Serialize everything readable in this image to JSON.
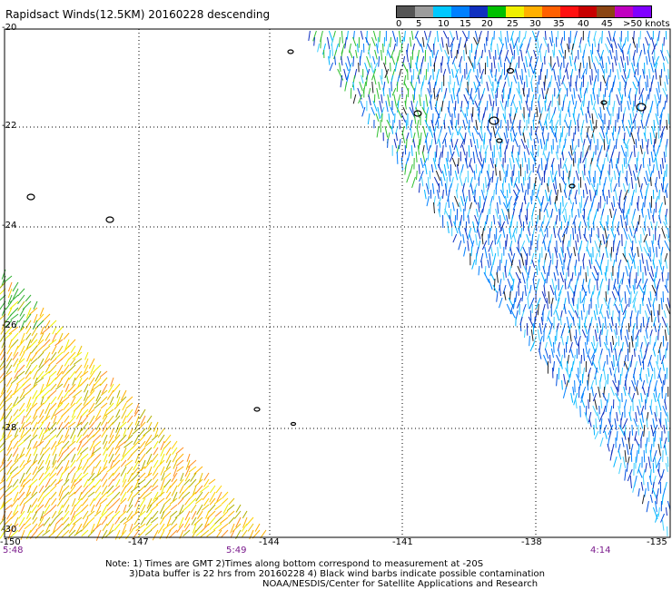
{
  "title": "Rapidsact Winds(12.5KM) 20160228 descending",
  "colorbar": {
    "colors": [
      "#555555",
      "#9c9c9c",
      "#00c8ff",
      "#0080ff",
      "#1030c0",
      "#00c000",
      "#f0f000",
      "#ffb000",
      "#ff6000",
      "#ff1010",
      "#c80000",
      "#8b4513",
      "#c000c0",
      "#8000ff"
    ],
    "labels": [
      "0",
      "5",
      "10",
      "15",
      "20",
      "25",
      "30",
      "35",
      "40",
      "45",
      ">50 knots"
    ]
  },
  "axes": {
    "lat_labels": [
      "-20",
      "-22",
      "-24",
      "-26",
      "-28",
      "-30"
    ],
    "lon_labels": [
      "-150",
      "-147",
      "-144",
      "-141",
      "-138",
      "-135"
    ],
    "time_labels": [
      "5:48",
      "5:49",
      "4:14"
    ]
  },
  "notes": {
    "line1": "Note: 1) Times are GMT 2)Times along bottom correspond to measurement at -20S",
    "line2": "3)Data buffer is 22 hrs from 20160228 4) Black wind barbs indicate possible contamination",
    "line3": "NOAA/NESDIS/Center for Satellite Applications and Research"
  }
}
